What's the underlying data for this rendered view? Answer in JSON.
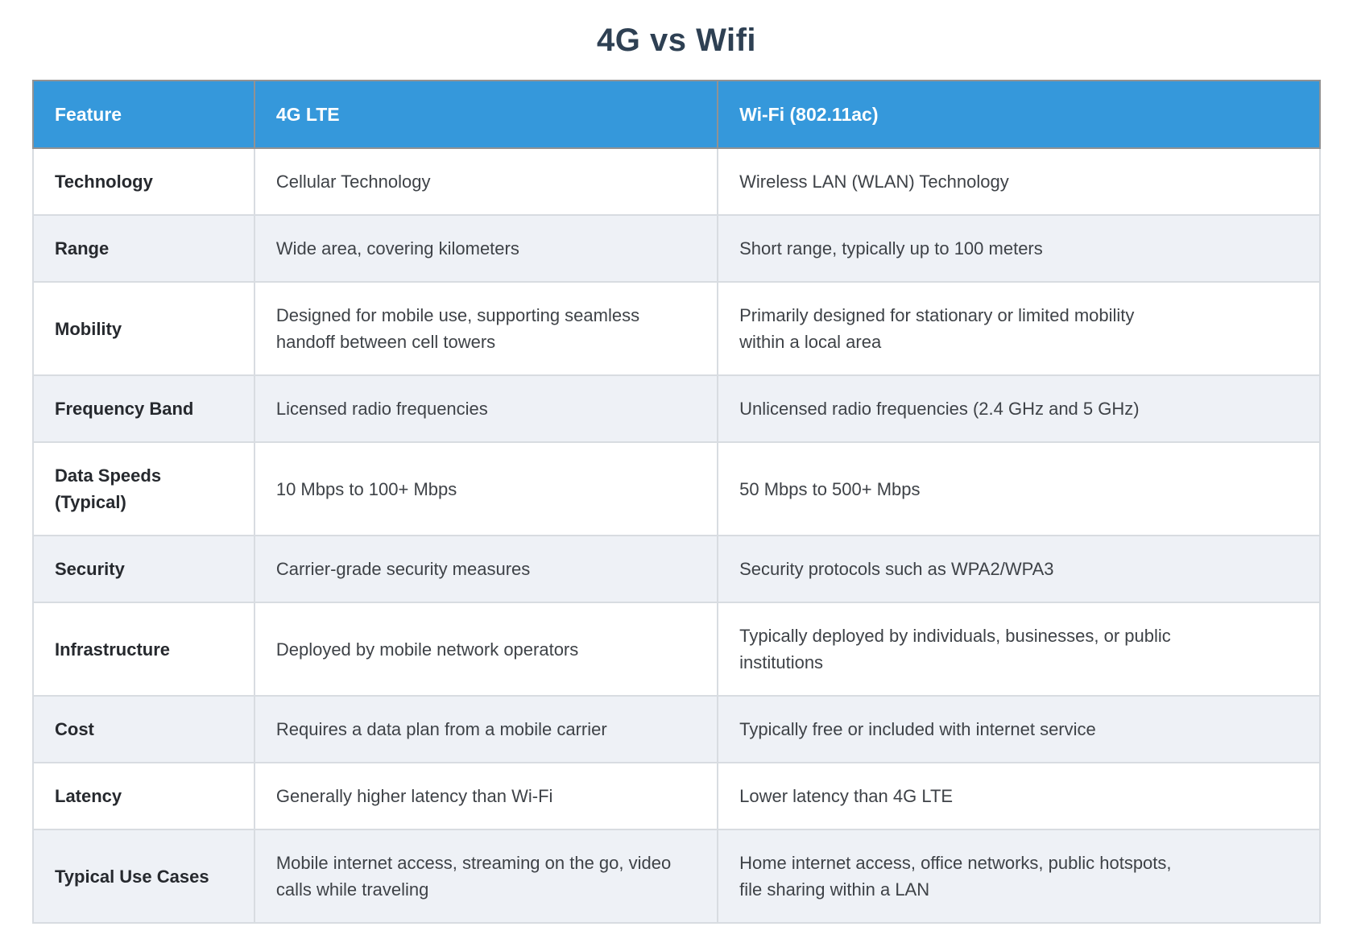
{
  "page": {
    "title": "4G vs Wifi"
  },
  "colors": {
    "header_bg": "#3598db",
    "header_text": "#ffffff",
    "title_text": "#2e4053",
    "alt_row_bg": "#eef1f6",
    "body_text": "#3e4247",
    "feature_text": "#26292e"
  },
  "table": {
    "columns": [
      "Feature",
      "4G LTE",
      "Wi-Fi (802.11ac)"
    ],
    "rows": [
      {
        "feature": "Technology",
        "lte": "Cellular Technology",
        "wifi": "Wireless LAN (WLAN) Technology"
      },
      {
        "feature": "Range",
        "lte": "Wide area, covering kilometers",
        "wifi": "Short range, typically up to 100 meters"
      },
      {
        "feature": "Mobility",
        "lte": "Designed for mobile use, supporting seamless\nhandoff between cell towers",
        "wifi": "Primarily designed for stationary or limited mobility\nwithin a local area"
      },
      {
        "feature": "Frequency Band",
        "lte": "Licensed radio frequencies",
        "wifi": "Unlicensed radio frequencies (2.4 GHz and 5 GHz)"
      },
      {
        "feature": "Data Speeds\n(Typical)",
        "lte": "10 Mbps to 100+ Mbps",
        "wifi": "50 Mbps to 500+ Mbps"
      },
      {
        "feature": "Security",
        "lte": "Carrier-grade security measures",
        "wifi": "Security protocols such as WPA2/WPA3"
      },
      {
        "feature": "Infrastructure",
        "lte": "Deployed by mobile network operators",
        "wifi": "Typically deployed by individuals, businesses, or public\ninstitutions"
      },
      {
        "feature": "Cost",
        "lte": "Requires a data plan from a mobile carrier",
        "wifi": "Typically free or included with internet service"
      },
      {
        "feature": "Latency",
        "lte": "Generally higher latency than Wi-Fi",
        "wifi": "Lower latency than 4G LTE"
      },
      {
        "feature": "Typical Use Cases",
        "lte": "Mobile internet access, streaming on the go, video\ncalls while traveling",
        "wifi": "Home internet access, office networks, public hotspots,\nfile sharing within a LAN"
      }
    ]
  }
}
